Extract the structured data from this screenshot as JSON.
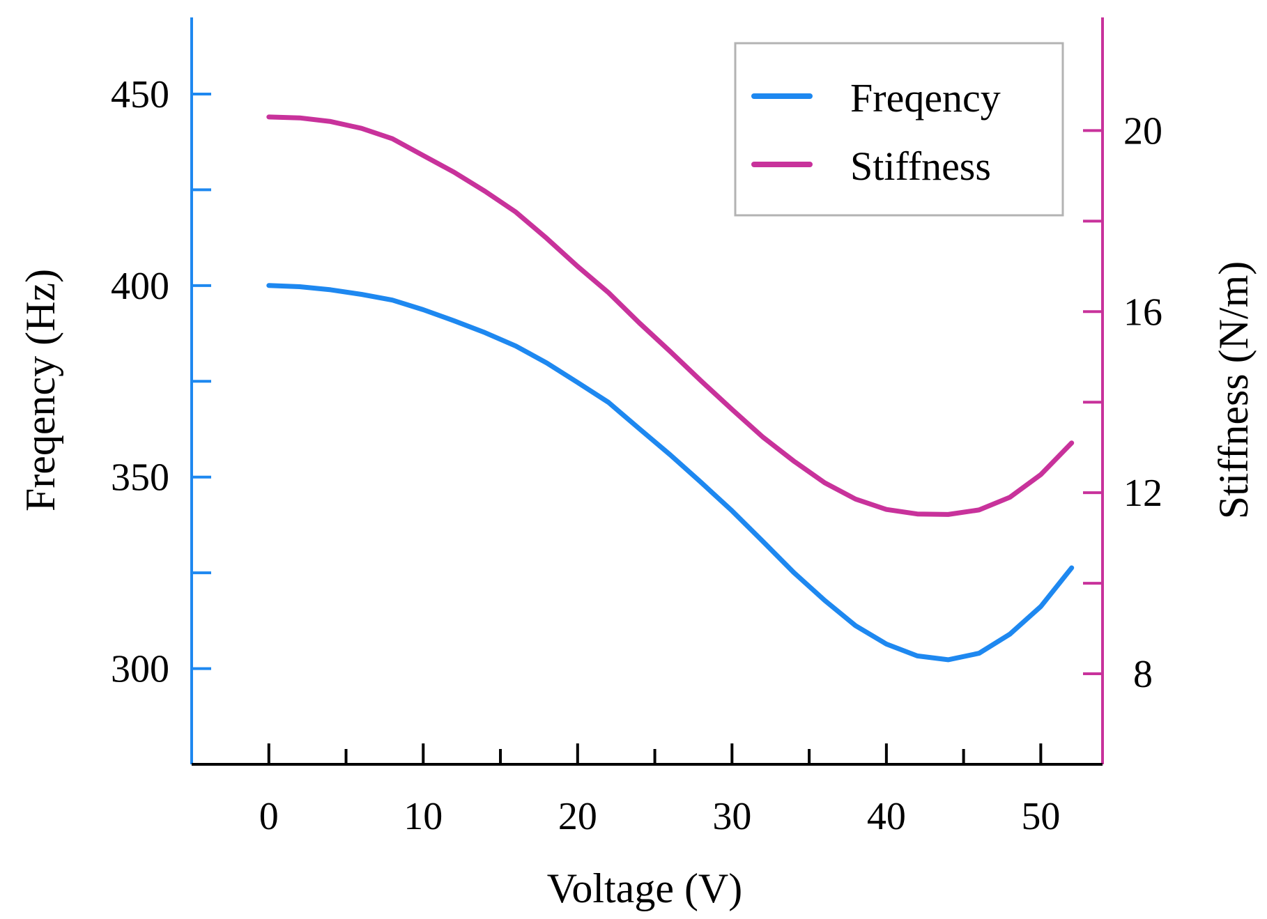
{
  "colors": {
    "frequency": "#1e88f0",
    "stiffness": "#c8329b",
    "axis": "#000000",
    "legend_border": "#b3b3b3"
  },
  "chart_data": {
    "type": "line",
    "xlabel": "Voltage (V)",
    "ylabel_left": "Freqency (Hz)",
    "ylabel_right": "Stiffness (N/m)",
    "xlim": [
      -5,
      54
    ],
    "ylim_left": [
      275,
      470
    ],
    "ylim_right": [
      6.0,
      22.5
    ],
    "x_ticks": [
      0,
      10,
      20,
      30,
      40,
      50
    ],
    "y_left_ticks": [
      300,
      350,
      400,
      450
    ],
    "y_left_minor_ticks": [
      325,
      375,
      425
    ],
    "y_right_ticks": [
      8,
      12,
      16,
      20
    ],
    "y_right_minor_ticks": [
      10,
      14,
      18
    ],
    "legend_position": "top-right",
    "grid": false,
    "x": [
      0,
      2,
      4,
      6,
      8,
      10,
      12,
      14,
      16,
      18,
      20,
      22,
      24,
      26,
      28,
      30,
      32,
      34,
      36,
      38,
      40,
      42,
      44,
      46,
      48,
      50,
      52
    ],
    "series": [
      {
        "name": "Freqency",
        "axis": "left",
        "values": [
          400,
          399.7,
          398.9,
          397.7,
          396.2,
          393.7,
          390.8,
          387.7,
          384.2,
          379.8,
          374.7,
          369.5,
          362.6,
          355.8,
          348.6,
          341.2,
          333.2,
          325.1,
          317.8,
          311.2,
          306.4,
          303.3,
          302.3,
          304.0,
          309.0,
          316.2,
          326.3
        ]
      },
      {
        "name": "Stiffness",
        "axis": "right",
        "values": [
          20.3,
          20.28,
          20.2,
          20.05,
          19.82,
          19.45,
          19.08,
          18.66,
          18.2,
          17.62,
          17.0,
          16.42,
          15.75,
          15.12,
          14.47,
          13.84,
          13.23,
          12.7,
          12.22,
          11.86,
          11.63,
          11.53,
          11.52,
          11.62,
          11.9,
          12.4,
          13.1
        ]
      }
    ]
  }
}
